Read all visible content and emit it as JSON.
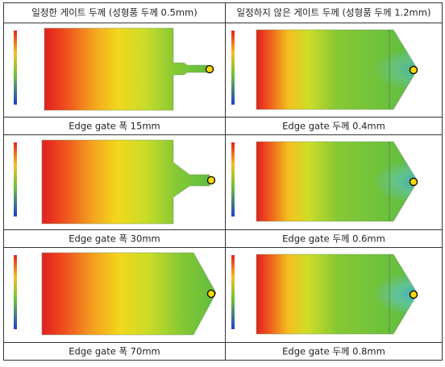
{
  "table": {
    "header": [
      "일정한 게이트 두께 (성형품 두께 0.5mm)",
      "일정하지 않은 게이트 두께 (성형품 두께 1.2mm)"
    ],
    "rows": [
      [
        "Edge gate 폭 15mm",
        "Edge gate 두께 0.4mm"
      ],
      [
        "Edge gate 폭 30mm",
        "Edge gate 두께 0.6mm"
      ],
      [
        "Edge gate 폭 70mm",
        "Edge gate 두께 0.8mm"
      ]
    ]
  }
}
